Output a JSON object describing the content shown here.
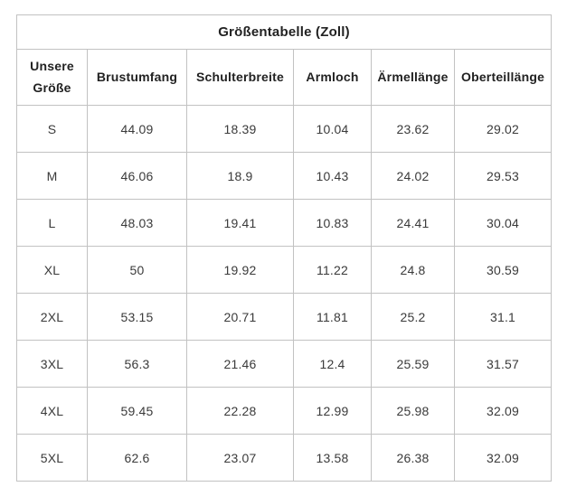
{
  "table": {
    "title": "Größentabelle (Zoll)",
    "columns": [
      "Unsere Größe",
      "Brustumfang",
      "Schulterbreite",
      "Armloch",
      "Ärmellänge",
      "Oberteillänge"
    ],
    "rows": [
      {
        "size": "S",
        "values": [
          "44.09",
          "18.39",
          "10.04",
          "23.62",
          "29.02"
        ]
      },
      {
        "size": "M",
        "values": [
          "46.06",
          "18.9",
          "10.43",
          "24.02",
          "29.53"
        ]
      },
      {
        "size": "L",
        "values": [
          "48.03",
          "19.41",
          "10.83",
          "24.41",
          "30.04"
        ]
      },
      {
        "size": "XL",
        "values": [
          "50",
          "19.92",
          "11.22",
          "24.8",
          "30.59"
        ]
      },
      {
        "size": "2XL",
        "values": [
          "53.15",
          "20.71",
          "11.81",
          "25.2",
          "31.1"
        ]
      },
      {
        "size": "3XL",
        "values": [
          "56.3",
          "21.46",
          "12.4",
          "25.59",
          "31.57"
        ]
      },
      {
        "size": "4XL",
        "values": [
          "59.45",
          "22.28",
          "12.99",
          "25.98",
          "32.09"
        ]
      },
      {
        "size": "5XL",
        "values": [
          "62.6",
          "23.07",
          "13.58",
          "26.38",
          "32.09"
        ]
      }
    ]
  },
  "chart_data": {
    "type": "table",
    "title": "Größentabelle (Zoll)",
    "columns": [
      "Unsere Größe",
      "Brustumfang",
      "Schulterbreite",
      "Armloch",
      "Ärmellänge",
      "Oberteillänge"
    ],
    "rows": [
      [
        "S",
        44.09,
        18.39,
        10.04,
        23.62,
        29.02
      ],
      [
        "M",
        46.06,
        18.9,
        10.43,
        24.02,
        29.53
      ],
      [
        "L",
        48.03,
        19.41,
        10.83,
        24.41,
        30.04
      ],
      [
        "XL",
        50,
        19.92,
        11.22,
        24.8,
        30.59
      ],
      [
        "2XL",
        53.15,
        20.71,
        11.81,
        25.2,
        31.1
      ],
      [
        "3XL",
        56.3,
        21.46,
        12.4,
        25.59,
        31.57
      ],
      [
        "4XL",
        59.45,
        22.28,
        12.99,
        25.98,
        32.09
      ],
      [
        "5XL",
        62.6,
        23.07,
        13.58,
        26.38,
        32.09
      ]
    ]
  },
  "colors": {
    "border": "#c2c2c2",
    "text": "#3a3a3a",
    "background": "#ffffff"
  }
}
